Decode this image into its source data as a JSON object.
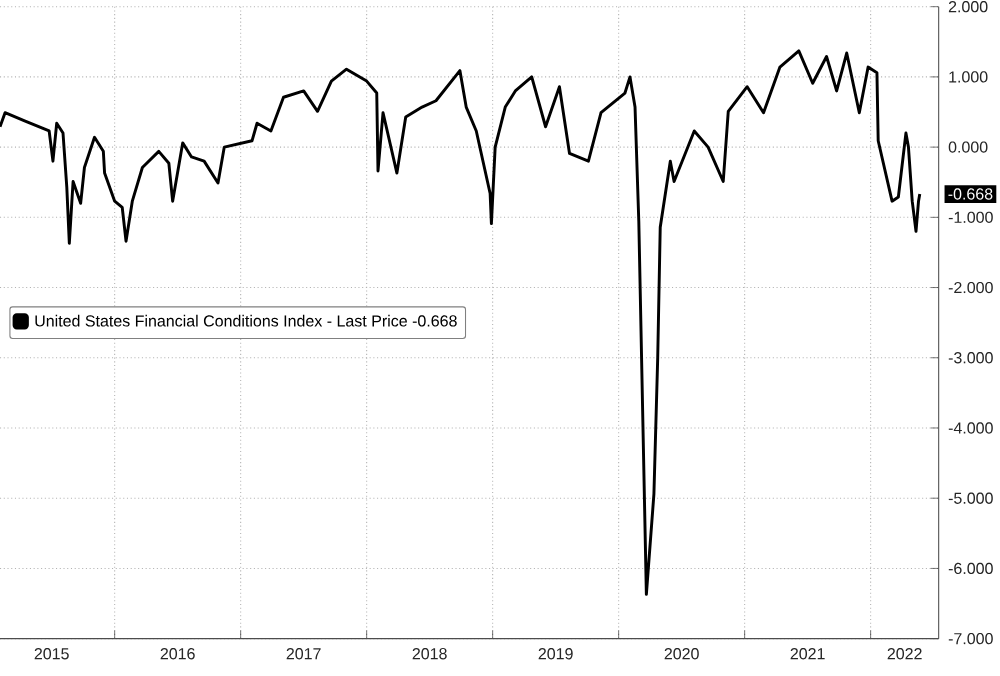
{
  "chart_data": {
    "type": "line",
    "x": [
      2015.09,
      2015.13,
      2015.29,
      2015.48,
      2015.51,
      2015.54,
      2015.59,
      2015.62,
      2015.64,
      2015.67,
      2015.73,
      2015.76,
      2015.84,
      2015.91,
      2015.92,
      2016.0,
      2016.06,
      2016.09,
      2016.14,
      2016.22,
      2016.35,
      2016.43,
      2016.46,
      2016.54,
      2016.61,
      2016.71,
      2016.82,
      2016.87,
      2017.09,
      2017.13,
      2017.24,
      2017.34,
      2017.5,
      2017.61,
      2017.72,
      2017.84,
      2018.0,
      2018.08,
      2018.09,
      2018.13,
      2018.24,
      2018.31,
      2018.44,
      2018.55,
      2018.74,
      2018.79,
      2018.87,
      2018.98,
      2018.99,
      2019.02,
      2019.1,
      2019.18,
      2019.31,
      2019.42,
      2019.53,
      2019.61,
      2019.76,
      2019.86,
      2020.05,
      2020.09,
      2020.13,
      2020.16,
      2020.22,
      2020.28,
      2020.31,
      2020.33,
      2020.41,
      2020.44,
      2020.6,
      2020.71,
      2020.83,
      2020.87,
      2021.02,
      2021.15,
      2021.28,
      2021.43,
      2021.54,
      2021.65,
      2021.73,
      2021.81,
      2021.91,
      2021.98,
      2022.05,
      2022.06,
      2022.17,
      2022.22,
      2022.28,
      2022.3,
      2022.33,
      2022.36,
      2022.38,
      2022.39
    ],
    "series": [
      {
        "name": "United States Financial Conditions Index - Last Price -0.668",
        "color": "#000000",
        "values": [
          0.29,
          0.49,
          0.37,
          0.23,
          -0.2,
          0.34,
          0.2,
          -0.57,
          -1.37,
          -0.49,
          -0.8,
          -0.29,
          0.14,
          -0.06,
          -0.37,
          -0.77,
          -0.86,
          -1.34,
          -0.77,
          -0.29,
          -0.06,
          -0.23,
          -0.77,
          0.06,
          -0.14,
          -0.2,
          -0.51,
          0.0,
          0.09,
          0.34,
          0.23,
          0.71,
          0.8,
          0.51,
          0.94,
          1.11,
          0.94,
          0.77,
          -0.34,
          0.49,
          -0.37,
          0.43,
          0.57,
          0.66,
          1.09,
          0.57,
          0.23,
          -0.66,
          -1.09,
          0.0,
          0.57,
          0.8,
          1.0,
          0.29,
          0.86,
          -0.09,
          -0.2,
          0.49,
          0.77,
          1.0,
          0.57,
          -1.06,
          -6.37,
          -4.94,
          -3.0,
          -1.14,
          -0.2,
          -0.49,
          0.23,
          0.0,
          -0.49,
          0.51,
          0.86,
          0.49,
          1.14,
          1.37,
          0.91,
          1.29,
          0.8,
          1.34,
          0.49,
          1.14,
          1.06,
          0.09,
          -0.77,
          -0.71,
          0.2,
          0.0,
          -0.77,
          -1.2,
          -0.77,
          -0.668
        ]
      }
    ],
    "xlim": [
      2015.09,
      2022.54
    ],
    "xticks": [
      {
        "value": 2015.5,
        "label": "2015"
      },
      {
        "value": 2016,
        "label": null
      },
      {
        "value": 2016.5,
        "label": "2016"
      },
      {
        "value": 2017,
        "label": null
      },
      {
        "value": 2017.5,
        "label": "2017"
      },
      {
        "value": 2018,
        "label": null
      },
      {
        "value": 2018.5,
        "label": "2018"
      },
      {
        "value": 2019,
        "label": null
      },
      {
        "value": 2019.5,
        "label": "2019"
      },
      {
        "value": 2020,
        "label": null
      },
      {
        "value": 2020.5,
        "label": "2020"
      },
      {
        "value": 2021,
        "label": null
      },
      {
        "value": 2021.5,
        "label": "2021"
      },
      {
        "value": 2022,
        "label": null
      },
      {
        "value": 2022.27,
        "label": "2022"
      }
    ],
    "ylim": [
      -7,
      2
    ],
    "yticks": [
      {
        "value": -7,
        "label": "-7.000"
      },
      {
        "value": -6,
        "label": "-6.000"
      },
      {
        "value": -5,
        "label": "-5.000"
      },
      {
        "value": -4,
        "label": "-4.000"
      },
      {
        "value": -3,
        "label": "-3.000"
      },
      {
        "value": -2,
        "label": "-2.000"
      },
      {
        "value": -1,
        "label": "-1.000"
      },
      {
        "value": 0,
        "label": "0.000"
      },
      {
        "value": 1,
        "label": "1.000"
      },
      {
        "value": 2,
        "label": "2.000"
      }
    ],
    "annotations": [
      {
        "text": "-0.668",
        "y": -0.668
      }
    ],
    "grid": true,
    "legend": "left",
    "line_style": "solid",
    "marker": "none"
  }
}
